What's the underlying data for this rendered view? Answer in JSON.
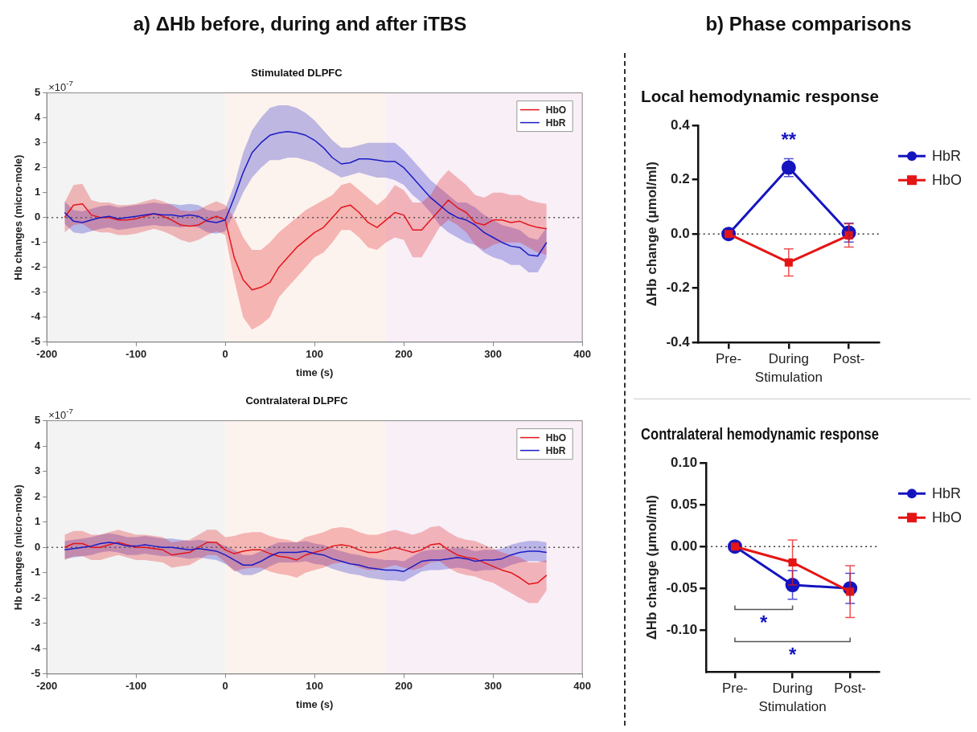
{
  "chart_data": [
    {
      "type": "line",
      "subtitle": "a) ΔHb before, during and after iTBS",
      "title": "Stimulated DLPFC",
      "xlabel": "time (s)",
      "ylabel": "Hb changes (micro-mole)",
      "annotations": [
        "×10$^{-7}$"
      ],
      "x": [
        -180,
        -170,
        -160,
        -150,
        -140,
        -130,
        -120,
        -110,
        -100,
        -90,
        -80,
        -70,
        -60,
        -50,
        -40,
        -30,
        -20,
        -10,
        0,
        10,
        20,
        30,
        40,
        50,
        60,
        70,
        80,
        90,
        100,
        110,
        120,
        130,
        140,
        150,
        160,
        170,
        180,
        190,
        200,
        210,
        220,
        230,
        240,
        250,
        260,
        270,
        280,
        290,
        300,
        310,
        320,
        330,
        340,
        350,
        360
      ],
      "xlim": [
        -200,
        400
      ],
      "xticks": [
        -200,
        -100,
        0,
        100,
        200,
        300,
        400
      ],
      "ylim": [
        -5,
        5
      ],
      "yticks": [
        -5,
        -4,
        -3,
        -2,
        -1,
        0,
        1,
        2,
        3,
        4,
        5
      ],
      "grid": false,
      "legend": "top right",
      "bands": [
        {
          "axis": "x",
          "from": -200,
          "to": 0,
          "color": "#f3f3f3"
        },
        {
          "axis": "x",
          "from": 0,
          "to": 180,
          "color": "#fdf3ee"
        },
        {
          "axis": "x",
          "from": 180,
          "to": 400,
          "color": "#f8eff7"
        }
      ],
      "ref_lines": [
        {
          "axis": "y",
          "value": 0,
          "line_style": "dotted",
          "color": "#555555"
        }
      ],
      "series": [
        {
          "name": "HbO",
          "color": "#e3161b",
          "marker": "none",
          "values": [
            0,
            0.5,
            0.55,
            0.1,
            0,
            0,
            -0.1,
            -0.1,
            -0.05,
            0.05,
            0.15,
            0.05,
            -0.1,
            -0.3,
            -0.35,
            -0.3,
            -0.1,
            0.05,
            -0.1,
            -1.6,
            -2.5,
            -2.9,
            -2.8,
            -2.6,
            -2.0,
            -1.6,
            -1.2,
            -0.9,
            -0.6,
            -0.4,
            0,
            0.4,
            0.5,
            0.2,
            -0.2,
            -0.4,
            -0.1,
            0.2,
            0.1,
            -0.5,
            -0.5,
            -0.1,
            0.3,
            0.7,
            0.4,
            0.2,
            -0.2,
            -0.3,
            -0.1,
            -0.1,
            -0.2,
            -0.15,
            -0.3,
            -0.4,
            -0.45
          ],
          "lower": [
            -0.6,
            -0.3,
            -0.25,
            -0.5,
            -0.6,
            -0.6,
            -0.7,
            -0.7,
            -0.65,
            -0.55,
            -0.45,
            -0.55,
            -0.7,
            -0.9,
            -1.0,
            -0.9,
            -0.7,
            -0.55,
            -0.7,
            -2.5,
            -4.0,
            -4.5,
            -4.3,
            -4.0,
            -3.2,
            -2.8,
            -2.4,
            -2.0,
            -1.6,
            -1.4,
            -1.0,
            -0.5,
            -0.5,
            -0.8,
            -1.2,
            -1.3,
            -1.0,
            -0.8,
            -0.9,
            -1.6,
            -1.6,
            -1.0,
            -0.4,
            -0.1,
            -0.3,
            -0.6,
            -1.1,
            -1.3,
            -1.1,
            -1.0,
            -1.0,
            -1.0,
            -1.2,
            -1.4,
            -1.5
          ],
          "upper": [
            0.6,
            1.3,
            1.35,
            0.7,
            0.6,
            0.6,
            0.5,
            0.5,
            0.55,
            0.65,
            0.75,
            0.65,
            0.5,
            0.3,
            0.25,
            0.3,
            0.5,
            0.65,
            0.5,
            0,
            -0.8,
            -1.3,
            -1.3,
            -1.0,
            -0.6,
            -0.3,
            0,
            0.3,
            0.5,
            0.7,
            0.9,
            1.3,
            1.4,
            1.1,
            0.8,
            0.5,
            0.8,
            1.3,
            1.1,
            0.6,
            0.6,
            0.9,
            1.5,
            1.9,
            1.6,
            1.3,
            0.9,
            0.8,
            1.0,
            1.0,
            0.9,
            0.9,
            0.7,
            0.6,
            0.55
          ]
        },
        {
          "name": "HbR",
          "color": "#1c1cc4",
          "marker": "none",
          "values": [
            0.2,
            -0.15,
            -0.2,
            -0.1,
            0,
            0.05,
            -0.05,
            0,
            0.05,
            0.1,
            0.15,
            0.1,
            0.1,
            0.05,
            0.1,
            0.05,
            -0.15,
            -0.2,
            -0.1,
            0.8,
            1.8,
            2.6,
            3.0,
            3.3,
            3.4,
            3.45,
            3.4,
            3.3,
            3.1,
            2.8,
            2.4,
            2.15,
            2.2,
            2.35,
            2.35,
            2.3,
            2.25,
            2.25,
            2.0,
            1.6,
            1.2,
            0.8,
            0.5,
            0.2,
            0,
            -0.1,
            -0.3,
            -0.6,
            -0.8,
            -1.0,
            -1.15,
            -1.2,
            -1.5,
            -1.55,
            -1.0
          ],
          "lower": [
            -0.25,
            -0.6,
            -0.65,
            -0.55,
            -0.45,
            -0.4,
            -0.5,
            -0.45,
            -0.4,
            -0.35,
            -0.3,
            -0.35,
            -0.35,
            -0.4,
            -0.35,
            -0.4,
            -0.6,
            -0.65,
            -0.55,
            0.2,
            1.0,
            1.6,
            2.0,
            2.3,
            2.3,
            2.4,
            2.4,
            2.3,
            2.2,
            2.0,
            1.8,
            1.6,
            1.7,
            1.8,
            1.7,
            1.6,
            1.6,
            1.5,
            1.3,
            0.9,
            0.6,
            0.2,
            -0.3,
            -0.6,
            -0.8,
            -1.0,
            -1.1,
            -1.4,
            -1.6,
            -1.7,
            -1.9,
            -1.9,
            -2.2,
            -2.2,
            -1.6
          ],
          "upper": [
            0.65,
            0.3,
            0.25,
            0.35,
            0.45,
            0.5,
            0.4,
            0.45,
            0.5,
            0.55,
            0.6,
            0.55,
            0.55,
            0.5,
            0.55,
            0.5,
            0.3,
            0.25,
            0.35,
            1.3,
            2.6,
            3.5,
            4.0,
            4.4,
            4.5,
            4.5,
            4.4,
            4.2,
            3.9,
            3.5,
            3.1,
            2.8,
            2.8,
            2.9,
            3.0,
            3.0,
            3.0,
            3.0,
            2.7,
            2.3,
            1.9,
            1.5,
            1.2,
            0.9,
            0.6,
            0.6,
            0.4,
            0.1,
            -0.1,
            -0.3,
            -0.4,
            -0.5,
            -0.8,
            -0.9,
            -0.4
          ]
        }
      ]
    },
    {
      "type": "line",
      "title": "Contralateral DLPFC",
      "xlabel": "time (s)",
      "ylabel": "Hb changes (micro-mole)",
      "annotations": [
        "×10$^{-7}$"
      ],
      "x": [
        -180,
        -170,
        -160,
        -150,
        -140,
        -130,
        -120,
        -110,
        -100,
        -90,
        -80,
        -70,
        -60,
        -50,
        -40,
        -30,
        -20,
        -10,
        0,
        10,
        20,
        30,
        40,
        50,
        60,
        70,
        80,
        90,
        100,
        110,
        120,
        130,
        140,
        150,
        160,
        170,
        180,
        190,
        200,
        210,
        220,
        230,
        240,
        250,
        260,
        270,
        280,
        290,
        300,
        310,
        320,
        330,
        340,
        350,
        360
      ],
      "xlim": [
        -200,
        400
      ],
      "xticks": [
        -200,
        -100,
        0,
        100,
        200,
        300,
        400
      ],
      "ylim": [
        -5,
        5
      ],
      "yticks": [
        -5,
        -4,
        -3,
        -2,
        -1,
        0,
        1,
        2,
        3,
        4,
        5
      ],
      "grid": false,
      "legend": "top right",
      "bands": [
        {
          "axis": "x",
          "from": -200,
          "to": 0,
          "color": "#f3f3f3"
        },
        {
          "axis": "x",
          "from": 0,
          "to": 180,
          "color": "#fdf3ee"
        },
        {
          "axis": "x",
          "from": 180,
          "to": 400,
          "color": "#f8eff7"
        }
      ],
      "ref_lines": [
        {
          "axis": "y",
          "value": 0,
          "line_style": "dotted",
          "color": "#555555"
        }
      ],
      "series": [
        {
          "name": "HbO",
          "color": "#e3161b",
          "marker": "none",
          "values": [
            0,
            0.15,
            0.15,
            0,
            0,
            0.1,
            0.2,
            0.1,
            0,
            0,
            -0.05,
            -0.1,
            -0.3,
            -0.25,
            -0.2,
            0,
            0.2,
            0.2,
            -0.1,
            -0.25,
            -0.15,
            -0.1,
            -0.1,
            -0.25,
            -0.35,
            -0.4,
            -0.5,
            -0.3,
            -0.2,
            -0.1,
            0.05,
            0.1,
            0.05,
            -0.1,
            -0.2,
            -0.2,
            -0.1,
            0,
            -0.1,
            -0.2,
            -0.1,
            0.1,
            0.15,
            -0.1,
            -0.3,
            -0.4,
            -0.45,
            -0.6,
            -0.75,
            -0.9,
            -1.0,
            -1.2,
            -1.45,
            -1.4,
            -1.1
          ],
          "lower": [
            -0.5,
            -0.35,
            -0.35,
            -0.5,
            -0.5,
            -0.4,
            -0.3,
            -0.4,
            -0.5,
            -0.5,
            -0.55,
            -0.6,
            -0.8,
            -0.75,
            -0.7,
            -0.5,
            -0.3,
            -0.3,
            -0.6,
            -0.95,
            -0.85,
            -0.8,
            -0.8,
            -0.95,
            -1.05,
            -1.1,
            -1.2,
            -1.0,
            -0.9,
            -0.8,
            -0.65,
            -0.6,
            -0.65,
            -0.8,
            -0.9,
            -0.9,
            -0.8,
            -0.7,
            -0.8,
            -0.9,
            -0.8,
            -0.6,
            -0.55,
            -0.8,
            -1.0,
            -1.1,
            -1.15,
            -1.3,
            -1.4,
            -1.6,
            -1.8,
            -2.0,
            -2.2,
            -2.2,
            -1.7
          ],
          "upper": [
            0.5,
            0.65,
            0.65,
            0.5,
            0.5,
            0.6,
            0.7,
            0.6,
            0.5,
            0.5,
            0.45,
            0.4,
            0.2,
            0.25,
            0.3,
            0.5,
            0.7,
            0.7,
            0.4,
            0.45,
            0.55,
            0.6,
            0.6,
            0.45,
            0.35,
            0.3,
            0.2,
            0.4,
            0.5,
            0.6,
            0.75,
            0.8,
            0.75,
            0.6,
            0.5,
            0.5,
            0.6,
            0.7,
            0.6,
            0.5,
            0.6,
            0.8,
            0.85,
            0.6,
            0.4,
            0.3,
            0.25,
            0.1,
            -0.05,
            -0.2,
            -0.3,
            -0.4,
            -0.6,
            -0.6,
            -0.5
          ]
        },
        {
          "name": "HbR",
          "color": "#1c1cc4",
          "marker": "none",
          "values": [
            -0.1,
            -0.05,
            0,
            0.05,
            0.15,
            0.2,
            0.15,
            0.05,
            0.05,
            0.1,
            0.05,
            0,
            0,
            -0.05,
            -0.1,
            -0.05,
            -0.1,
            -0.15,
            -0.3,
            -0.5,
            -0.7,
            -0.7,
            -0.55,
            -0.35,
            -0.2,
            -0.2,
            -0.2,
            -0.15,
            -0.25,
            -0.3,
            -0.45,
            -0.55,
            -0.65,
            -0.7,
            -0.8,
            -0.85,
            -0.9,
            -0.9,
            -0.95,
            -0.75,
            -0.55,
            -0.5,
            -0.5,
            -0.45,
            -0.4,
            -0.45,
            -0.55,
            -0.5,
            -0.5,
            -0.45,
            -0.3,
            -0.2,
            -0.15,
            -0.15,
            -0.2
          ],
          "lower": [
            -0.45,
            -0.4,
            -0.35,
            -0.3,
            -0.2,
            -0.15,
            -0.2,
            -0.3,
            -0.3,
            -0.25,
            -0.3,
            -0.35,
            -0.35,
            -0.4,
            -0.45,
            -0.4,
            -0.45,
            -0.5,
            -0.65,
            -0.9,
            -1.1,
            -1.1,
            -0.95,
            -0.75,
            -0.6,
            -0.6,
            -0.6,
            -0.55,
            -0.65,
            -0.7,
            -0.85,
            -0.95,
            -1.05,
            -1.1,
            -1.2,
            -1.25,
            -1.3,
            -1.3,
            -1.35,
            -1.15,
            -0.95,
            -0.9,
            -0.9,
            -0.85,
            -0.8,
            -0.85,
            -0.95,
            -0.9,
            -0.9,
            -0.85,
            -0.7,
            -0.6,
            -0.55,
            -0.55,
            -0.6
          ],
          "upper": [
            0.25,
            0.3,
            0.35,
            0.4,
            0.5,
            0.55,
            0.5,
            0.4,
            0.4,
            0.45,
            0.4,
            0.35,
            0.35,
            0.3,
            0.25,
            0.3,
            0.25,
            0.2,
            0.05,
            -0.1,
            -0.3,
            -0.3,
            -0.15,
            0.05,
            0.2,
            0.2,
            0.2,
            0.25,
            0.15,
            0.1,
            -0.05,
            -0.15,
            -0.25,
            -0.3,
            -0.4,
            -0.45,
            -0.5,
            -0.5,
            -0.55,
            -0.35,
            -0.15,
            -0.1,
            -0.1,
            -0.05,
            0,
            -0.05,
            -0.15,
            -0.1,
            -0.1,
            -0.05,
            0.1,
            0.2,
            0.25,
            0.25,
            0.2
          ]
        }
      ]
    },
    {
      "type": "line",
      "subtitle": "b) Phase comparisons",
      "title": "Local hemodynamic response",
      "xlabel": "Stimulation",
      "ylabel": "ΔHb change (μmol/ml)",
      "categories": [
        "Pre-",
        "During",
        "Post-"
      ],
      "ylim": [
        -0.4,
        0.4
      ],
      "yticks": [
        {
          "value": -0.4,
          "label": "-0.4"
        },
        {
          "value": -0.2,
          "label": "-0.2"
        },
        {
          "value": 0,
          "label": "0.0"
        },
        {
          "value": 0.2,
          "label": "0.2"
        },
        {
          "value": 0.4,
          "label": "0.4"
        }
      ],
      "grid": false,
      "legend": "right",
      "ref_lines": [
        {
          "axis": "y",
          "value": 0,
          "line_style": "dotted",
          "color": "#333333"
        }
      ],
      "annotations": [
        "**"
      ],
      "series": [
        {
          "name": "HbR",
          "color": "#1515c0",
          "marker": "circle",
          "values": [
            0,
            0.245,
            0.005
          ],
          "errors": [
            null,
            0.033,
            0.035
          ]
        },
        {
          "name": "HbO",
          "color": "#e51515",
          "marker": "square",
          "values": [
            0,
            -0.105,
            -0.005
          ],
          "errors": [
            null,
            0.05,
            0.043
          ]
        }
      ]
    },
    {
      "type": "line",
      "title": "Contralateral hemodynamic response",
      "xlabel": "Stimulation",
      "ylabel": "ΔHb change (μmol/ml)",
      "categories": [
        "Pre-",
        "During",
        "Post-"
      ],
      "ylim": [
        -0.15,
        0.1
      ],
      "yticks": [
        {
          "value": -0.1,
          "label": "-0.10"
        },
        {
          "value": -0.05,
          "label": "-0.05"
        },
        {
          "value": 0,
          "label": "0.00"
        },
        {
          "value": 0.05,
          "label": "0.05"
        },
        {
          "value": 0.1,
          "label": "0.10"
        }
      ],
      "grid": false,
      "legend": "right",
      "ref_lines": [
        {
          "axis": "y",
          "value": 0,
          "line_style": "dotted",
          "color": "#333333"
        }
      ],
      "annotations": [
        "*",
        "*"
      ],
      "series": [
        {
          "name": "HbR",
          "color": "#1515c0",
          "marker": "circle",
          "values": [
            0,
            -0.046,
            -0.05
          ],
          "errors": [
            null,
            0.017,
            0.018
          ]
        },
        {
          "name": "HbO",
          "color": "#e51515",
          "marker": "square",
          "values": [
            0,
            -0.019,
            -0.054
          ],
          "errors": [
            null,
            0.027,
            0.031
          ]
        }
      ]
    }
  ]
}
